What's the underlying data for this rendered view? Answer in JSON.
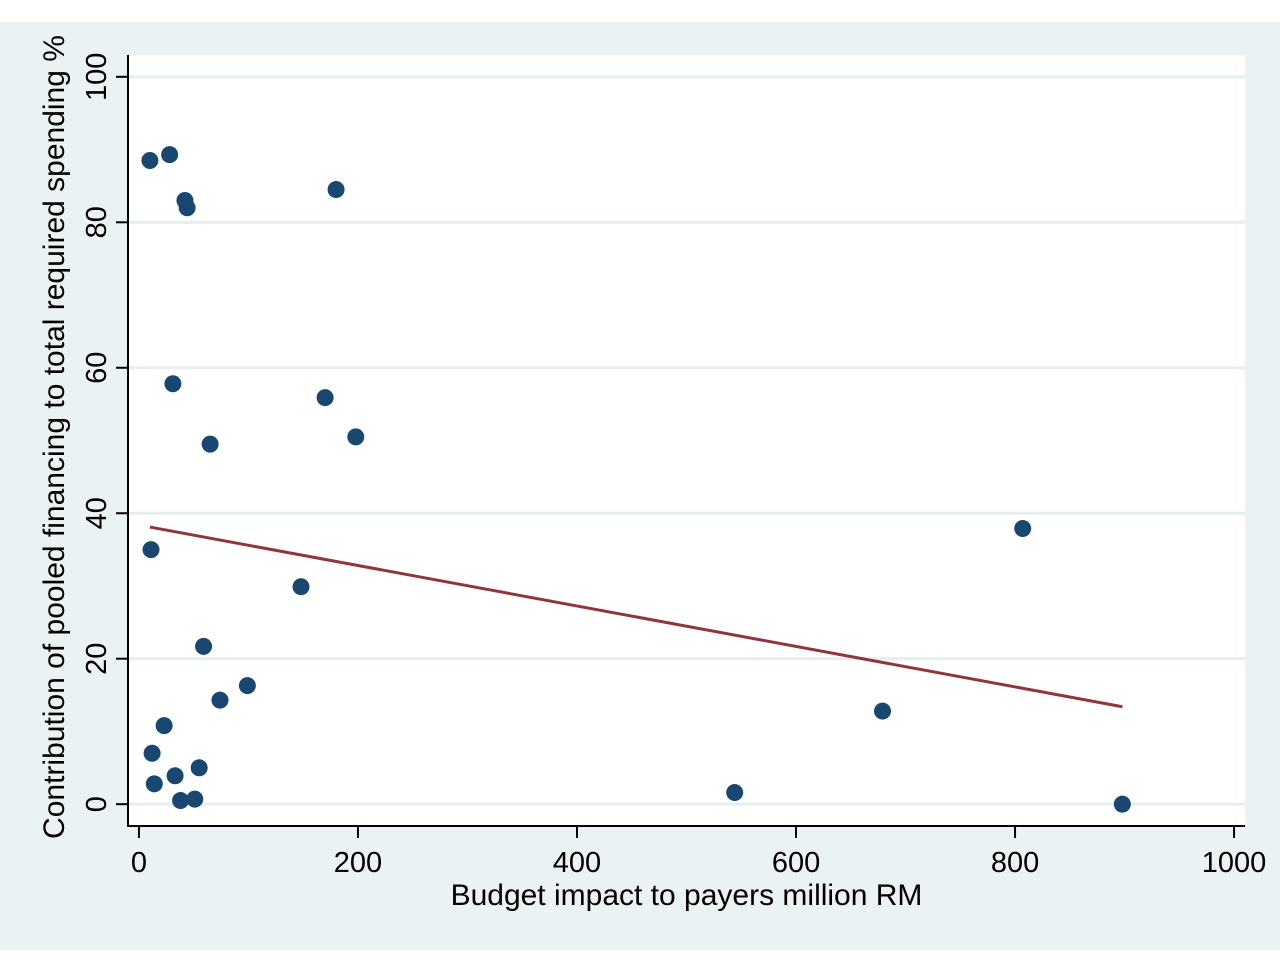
{
  "chart_data": {
    "type": "scatter",
    "title": "",
    "xlabel": "Budget impact to payers million RM",
    "ylabel": "Contribution of pooled financing to total required spending %",
    "xlim": [
      -10,
      1010
    ],
    "ylim": [
      -3,
      103
    ],
    "xticks": [
      0,
      200,
      400,
      600,
      800,
      1000
    ],
    "yticks": [
      0,
      20,
      40,
      60,
      80,
      100
    ],
    "xtick_labels": [
      "0",
      "200",
      "400",
      "600",
      "800",
      "1000"
    ],
    "ytick_labels": [
      "0",
      "20",
      "40",
      "60",
      "80",
      "100"
    ],
    "grid": "horizontal",
    "legend": "none",
    "colors": {
      "outer_background": "#eaf2f3",
      "plot_background": "#ffffff",
      "gridline": "#e6eef0",
      "marker": "#1a476f",
      "fit_line": "#90353b",
      "axis": "#000000"
    },
    "series": [
      {
        "marker": "circle",
        "points": [
          {
            "x": 10,
            "y": 88.5
          },
          {
            "x": 28,
            "y": 89.3
          },
          {
            "x": 42,
            "y": 83
          },
          {
            "x": 44,
            "y": 82
          },
          {
            "x": 180,
            "y": 84.5
          },
          {
            "x": 31,
            "y": 57.8
          },
          {
            "x": 170,
            "y": 55.9
          },
          {
            "x": 65,
            "y": 49.5
          },
          {
            "x": 198,
            "y": 50.5
          },
          {
            "x": 11,
            "y": 35
          },
          {
            "x": 148,
            "y": 29.9
          },
          {
            "x": 807,
            "y": 37.9
          },
          {
            "x": 59,
            "y": 21.7
          },
          {
            "x": 99,
            "y": 16.3
          },
          {
            "x": 74,
            "y": 14.3
          },
          {
            "x": 23,
            "y": 10.8
          },
          {
            "x": 679,
            "y": 12.8
          },
          {
            "x": 12,
            "y": 7
          },
          {
            "x": 55,
            "y": 5
          },
          {
            "x": 33,
            "y": 3.9
          },
          {
            "x": 14,
            "y": 2.8
          },
          {
            "x": 38,
            "y": 0.5
          },
          {
            "x": 51,
            "y": 0.7
          },
          {
            "x": 544,
            "y": 1.6
          },
          {
            "x": 898,
            "y": 0
          }
        ]
      }
    ],
    "fit_line": {
      "type": "linear",
      "points": [
        {
          "x": 10,
          "y": 38.1
        },
        {
          "x": 898,
          "y": 13.4
        }
      ]
    }
  }
}
